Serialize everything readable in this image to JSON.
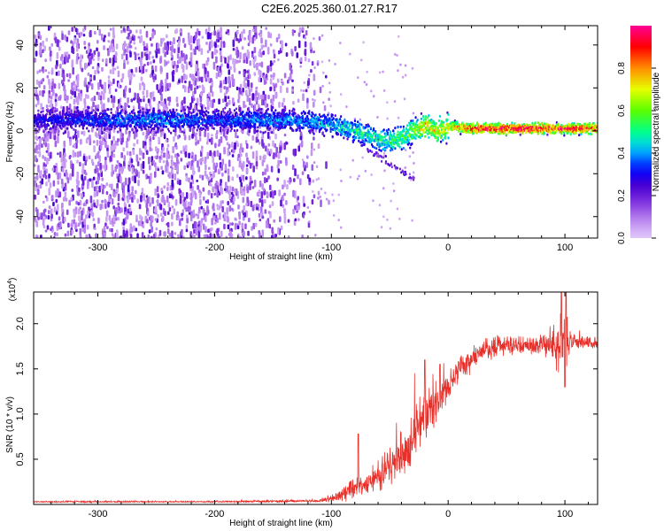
{
  "figure_title": "C2E6.2025.360.01.27.R17",
  "chart_data": [
    {
      "type": "heatmap",
      "title": "C2E6.2025.360.01.27.R17",
      "xlabel": "Height of straight line (km)",
      "ylabel": "Frequency (Hz)",
      "xlim": [
        -355,
        128
      ],
      "ylim": [
        -50,
        49
      ],
      "xticks": [
        -300,
        -200,
        -100,
        0,
        100
      ],
      "yticks": [
        -40,
        -20,
        0,
        20,
        40
      ],
      "colorbar": {
        "label": "Normalized spectral amplitude",
        "range": [
          0,
          1
        ],
        "ticks": [
          0.0,
          0.2,
          0.4,
          0.6,
          0.8
        ],
        "tick_labels": [
          "0.0",
          "0.2",
          "0.4",
          "0.6",
          "0.8"
        ],
        "colormap": [
          "#ffffff",
          "#d7b8f5",
          "#8a2be2",
          "#5000d0",
          "#0000ff",
          "#00c8ff",
          "#00ff60",
          "#a0ff00",
          "#ffff00",
          "#ff8000",
          "#ff0000",
          "#ff0090"
        ]
      },
      "ridge": {
        "x": [
          -350,
          -300,
          -250,
          -200,
          -150,
          -120,
          -100,
          -80,
          -70,
          -55,
          -45,
          -30,
          -20,
          -10,
          0,
          20,
          60,
          100,
          128
        ],
        "frequency": [
          5,
          5,
          5,
          5,
          5,
          4.5,
          3,
          0,
          -2,
          -5,
          -4,
          0,
          2,
          0,
          2,
          1,
          1,
          1,
          1
        ],
        "amplitude": [
          0.3,
          0.35,
          0.4,
          0.35,
          0.4,
          0.4,
          0.45,
          0.5,
          0.5,
          0.5,
          0.55,
          0.6,
          0.75,
          0.7,
          0.7,
          0.9,
          0.95,
          0.9,
          0.85
        ]
      },
      "noise_region": {
        "x_from": -355,
        "x_to": -100,
        "note": "scattered low-amplitude noise across full frequency band"
      }
    },
    {
      "type": "line",
      "title": "",
      "xlabel": "Height of straight line (km)",
      "ylabel": "SNR (10 * v/v)",
      "y_multiplier_label": "(x10",
      "y_multiplier_exp": "4",
      "xlim": [
        -355,
        128
      ],
      "ylim": [
        0,
        2.35
      ],
      "xticks": [
        -300,
        -200,
        -100,
        0,
        100
      ],
      "yticks": [
        0.5,
        1.0,
        1.5,
        2.0
      ],
      "ytick_labels": [
        "0.5",
        "1.0",
        "1.5",
        "2.0"
      ],
      "color": "#e8302a",
      "envelope": {
        "x": [
          -355,
          -200,
          -110,
          -100,
          -90,
          -80,
          -70,
          -60,
          -50,
          -40,
          -30,
          -20,
          -10,
          0,
          10,
          20,
          30,
          40,
          60,
          80,
          90,
          95,
          100,
          105,
          110,
          128
        ],
        "mean": [
          0.03,
          0.03,
          0.04,
          0.07,
          0.12,
          0.2,
          0.22,
          0.3,
          0.42,
          0.55,
          0.75,
          0.95,
          1.1,
          1.3,
          1.5,
          1.62,
          1.7,
          1.75,
          1.76,
          1.77,
          1.77,
          1.75,
          1.78,
          1.8,
          1.8,
          1.78
        ],
        "spread": [
          0.01,
          0.01,
          0.02,
          0.05,
          0.1,
          0.15,
          0.12,
          0.2,
          0.25,
          0.3,
          0.35,
          0.3,
          0.25,
          0.2,
          0.15,
          0.15,
          0.15,
          0.15,
          0.12,
          0.12,
          0.25,
          0.35,
          0.45,
          0.2,
          0.08,
          0.08
        ]
      },
      "spikes": [
        {
          "x": -77,
          "y": 0.78
        },
        {
          "x": -20,
          "y": 1.6
        },
        {
          "x": -7,
          "y": 1.55
        },
        {
          "x": 97,
          "y": 2.35
        },
        {
          "x": 101,
          "y": 2.35
        },
        {
          "x": 100,
          "y": 1.3
        }
      ]
    }
  ]
}
